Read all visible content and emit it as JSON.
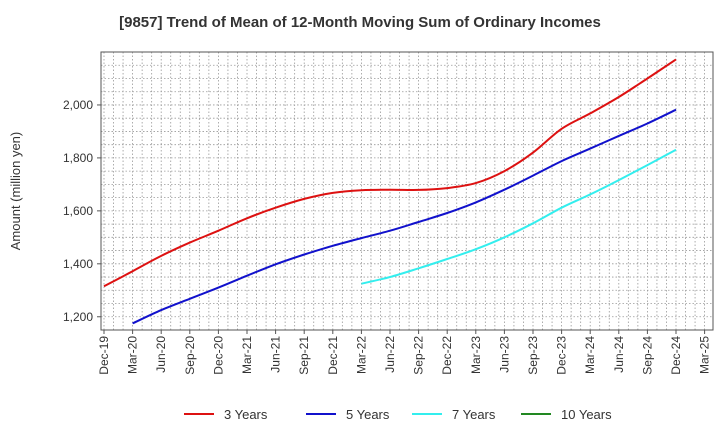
{
  "chart_data": {
    "type": "line",
    "title": "[9857]  Trend of Mean of 12-Month Moving Sum of Ordinary Incomes",
    "xlabel": "",
    "ylabel": "Amount (million yen)",
    "ylim": [
      1150,
      2200
    ],
    "yticks": [
      1200,
      1400,
      1600,
      1800,
      2000
    ],
    "ytick_labels": [
      "1,200",
      "1,400",
      "1,600",
      "1,800",
      "2,000"
    ],
    "categories": [
      "Dec-19",
      "Mar-20",
      "Jun-20",
      "Sep-20",
      "Dec-20",
      "Mar-21",
      "Jun-21",
      "Sep-21",
      "Dec-21",
      "Mar-22",
      "Jun-22",
      "Sep-22",
      "Dec-22",
      "Mar-23",
      "Jun-23",
      "Sep-23",
      "Dec-23",
      "Mar-24",
      "Jun-24",
      "Sep-24",
      "Dec-24",
      "Mar-25"
    ],
    "grid": true,
    "legend_position": "bottom",
    "series": [
      {
        "name": "3 Years",
        "color": "#dd1111",
        "values": [
          1315,
          1372,
          1430,
          1480,
          1525,
          1572,
          1612,
          1645,
          1668,
          1678,
          1680,
          1679,
          1686,
          1705,
          1750,
          1820,
          1910,
          1968,
          2030,
          2100,
          2172,
          null
        ]
      },
      {
        "name": "5 Years",
        "color": "#1111cc",
        "values": [
          null,
          1175,
          1225,
          1268,
          1310,
          1355,
          1398,
          1435,
          1468,
          1497,
          1525,
          1558,
          1592,
          1632,
          1680,
          1733,
          1788,
          1835,
          1883,
          1930,
          1982,
          null
        ]
      },
      {
        "name": "7 Years",
        "color": "#33eeee",
        "values": [
          null,
          null,
          null,
          null,
          null,
          null,
          null,
          null,
          null,
          1325,
          1350,
          1383,
          1418,
          1455,
          1500,
          1553,
          1612,
          1662,
          1716,
          1773,
          1831,
          null
        ]
      },
      {
        "name": "10 Years",
        "color": "#228822",
        "values": [
          null,
          null,
          null,
          null,
          null,
          null,
          null,
          null,
          null,
          null,
          null,
          null,
          null,
          null,
          null,
          null,
          null,
          null,
          null,
          null,
          null,
          null
        ]
      }
    ]
  }
}
